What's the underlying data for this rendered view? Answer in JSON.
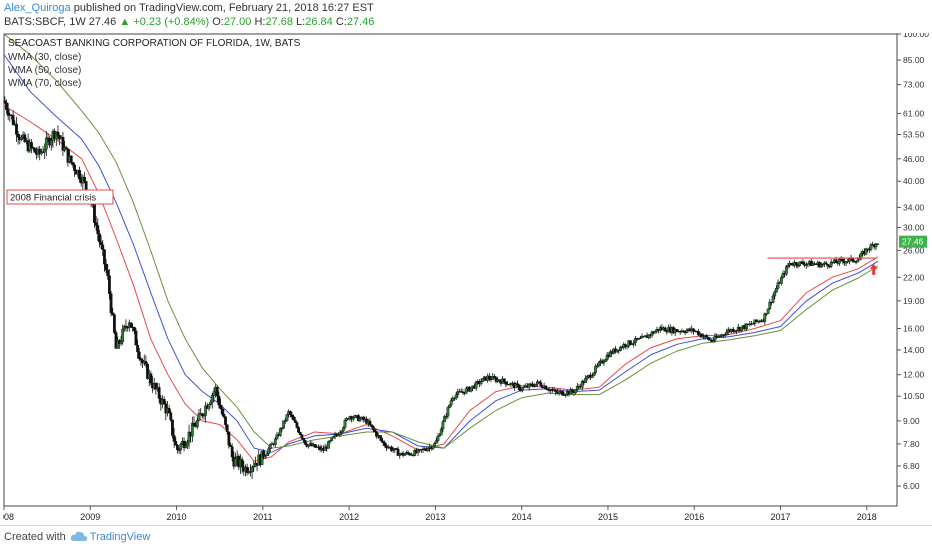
{
  "header": {
    "author": "Alex_Quiroga",
    "published_text": "published on TradingView.com, February 21, 2018 16:27 EST"
  },
  "quote": {
    "symbol": "BATS:SBCF, 1W",
    "last": "27.46",
    "change": "+0.23 (+0.84%)",
    "o_label": "O:",
    "o": "27.00",
    "h_label": "H:",
    "h": "27.68",
    "l_label": "L:",
    "l": "26.84",
    "c_label": "C:",
    "c": "27.46"
  },
  "footer": {
    "created_with": "Created with",
    "brand": "TradingView"
  },
  "colors": {
    "candle_up": "#2e7d32",
    "candle_down": "#111111",
    "wma30": "#e8484a",
    "wma50": "#3c52d6",
    "wma70": "#6b8f3c",
    "resistance": "#e8484a",
    "price_badge": "#3cb44b",
    "arrow": "#e53935"
  },
  "chart_data": {
    "type": "line",
    "title": "SEACOAST BANKING CORPORATION OF FLORIDA, 1W, BATS",
    "y_scale": "log",
    "ylim": [
      5.3,
      100
    ],
    "y_ticks": [
      "100.00",
      "85.00",
      "73.00",
      "61.00",
      "53.50",
      "46.00",
      "40.00",
      "34.00",
      "30.00",
      "26.00",
      "22.00",
      "19.00",
      "16.00",
      "14.00",
      "12.00",
      "10.50",
      "9.00",
      "7.80",
      "6.80",
      "6.00"
    ],
    "y_tick_values": [
      100,
      85,
      73,
      61,
      53.5,
      46,
      40,
      34,
      30,
      26,
      22,
      19,
      16,
      14,
      12,
      10.5,
      9,
      7.8,
      6.8,
      6
    ],
    "x_ticks": [
      "2008",
      "2009",
      "2010",
      "2011",
      "2012",
      "2013",
      "2014",
      "2015",
      "2016",
      "2017",
      "2018"
    ],
    "x_tick_values": [
      2008,
      2009,
      2010,
      2011,
      2012,
      2013,
      2014,
      2015,
      2016,
      2017,
      2018
    ],
    "xlim": [
      2008.0,
      2018.35
    ],
    "last_price_label": "27.46",
    "annotation": "2008 Financial crisis",
    "resistance_level": 24.8,
    "resistance_span": [
      2016.85,
      2018.1
    ],
    "arrow_at": [
      2018.08,
      22.9
    ],
    "series": [
      {
        "name": "SBCF",
        "x": [
          2008.0,
          2008.2,
          2008.4,
          2008.6,
          2008.75,
          2008.9,
          2009.0,
          2009.1,
          2009.2,
          2009.3,
          2009.45,
          2009.6,
          2009.75,
          2009.9,
          2010.0,
          2010.1,
          2010.25,
          2010.35,
          2010.45,
          2010.55,
          2010.65,
          2010.8,
          2011.0,
          2011.15,
          2011.3,
          2011.5,
          2011.7,
          2011.9,
          2012.0,
          2012.2,
          2012.4,
          2012.6,
          2012.8,
          2013.0,
          2013.2,
          2013.4,
          2013.6,
          2013.8,
          2014.0,
          2014.2,
          2014.4,
          2014.6,
          2014.8,
          2015.0,
          2015.2,
          2015.4,
          2015.6,
          2015.8,
          2016.0,
          2016.2,
          2016.4,
          2016.6,
          2016.8,
          2016.95,
          2017.1,
          2017.3,
          2017.5,
          2017.7,
          2017.9,
          2018.0,
          2018.13
        ],
        "y": [
          66,
          52,
          47,
          55,
          46,
          41,
          36,
          28,
          22,
          14,
          17,
          13,
          11,
          9.5,
          7.5,
          8.0,
          9.0,
          10.0,
          11.0,
          9.0,
          7.1,
          6.7,
          7.2,
          8.0,
          9.5,
          7.8,
          7.5,
          8.5,
          9.3,
          9.0,
          7.8,
          7.3,
          7.4,
          7.8,
          10.5,
          11.0,
          11.8,
          11.5,
          11.0,
          11.4,
          10.7,
          10.8,
          12.0,
          13.6,
          14.5,
          15.0,
          16.0,
          15.8,
          15.8,
          14.8,
          15.8,
          16.2,
          17.0,
          20.5,
          24.0,
          24.0,
          23.8,
          24.3,
          24.6,
          26.2,
          27.46
        ]
      },
      {
        "name": "WMA (30, close)",
        "x": [
          2008.0,
          2008.3,
          2008.6,
          2008.9,
          2009.1,
          2009.3,
          2009.5,
          2009.7,
          2009.9,
          2010.1,
          2010.3,
          2010.5,
          2010.7,
          2010.9,
          2011.1,
          2011.3,
          2011.6,
          2011.9,
          2012.2,
          2012.5,
          2012.8,
          2013.1,
          2013.4,
          2013.7,
          2014.0,
          2014.3,
          2014.6,
          2014.9,
          2015.2,
          2015.5,
          2015.8,
          2016.1,
          2016.4,
          2016.7,
          2017.0,
          2017.3,
          2017.6,
          2017.9,
          2018.13
        ],
        "y": [
          64,
          58,
          52,
          46,
          37,
          28,
          21,
          15,
          12,
          10,
          9.0,
          8.8,
          8.0,
          7.0,
          7.2,
          7.9,
          8.4,
          8.3,
          8.8,
          8.2,
          7.5,
          7.8,
          9.6,
          10.8,
          11.2,
          11.1,
          10.9,
          11.1,
          12.8,
          14.2,
          15.0,
          15.3,
          15.4,
          16.0,
          16.8,
          20.0,
          22.0,
          23.2,
          25.0
        ]
      },
      {
        "name": "WMA (50, close)",
        "x": [
          2008.0,
          2008.3,
          2008.6,
          2008.9,
          2009.1,
          2009.3,
          2009.5,
          2009.7,
          2009.9,
          2010.1,
          2010.3,
          2010.5,
          2010.7,
          2010.9,
          2011.1,
          2011.3,
          2011.6,
          2011.9,
          2012.2,
          2012.5,
          2012.8,
          2013.1,
          2013.4,
          2013.7,
          2014.0,
          2014.3,
          2014.6,
          2014.9,
          2015.2,
          2015.5,
          2015.8,
          2016.1,
          2016.4,
          2016.7,
          2017.0,
          2017.3,
          2017.6,
          2017.9,
          2018.13
        ],
        "y": [
          88,
          70,
          60,
          52,
          44,
          35,
          27,
          20,
          15,
          12,
          10.8,
          10.0,
          9.0,
          7.6,
          7.4,
          7.8,
          8.2,
          8.3,
          8.6,
          8.4,
          7.7,
          7.6,
          9.0,
          10.2,
          10.9,
          11.0,
          10.8,
          10.9,
          12.2,
          13.6,
          14.5,
          15.0,
          15.2,
          15.6,
          16.2,
          19.0,
          21.2,
          22.6,
          24.3
        ]
      },
      {
        "name": "WMA (70, close)",
        "x": [
          2008.0,
          2008.3,
          2008.6,
          2008.9,
          2009.1,
          2009.3,
          2009.5,
          2009.7,
          2009.9,
          2010.1,
          2010.3,
          2010.5,
          2010.7,
          2010.9,
          2011.1,
          2011.3,
          2011.6,
          2011.9,
          2012.2,
          2012.5,
          2012.8,
          2013.1,
          2013.4,
          2013.7,
          2014.0,
          2014.3,
          2014.6,
          2014.9,
          2015.2,
          2015.5,
          2015.8,
          2016.1,
          2016.4,
          2016.7,
          2017.0,
          2017.3,
          2017.6,
          2017.9,
          2018.13
        ],
        "y": [
          100,
          88,
          75,
          62,
          54,
          45,
          35,
          26,
          19,
          15,
          12.5,
          11.0,
          9.8,
          8.4,
          7.6,
          7.7,
          8.0,
          8.2,
          8.4,
          8.4,
          7.9,
          7.6,
          8.6,
          9.6,
          10.4,
          10.7,
          10.6,
          10.6,
          11.6,
          12.9,
          13.9,
          14.6,
          14.9,
          15.3,
          15.8,
          18.0,
          20.3,
          21.9,
          23.6
        ]
      }
    ]
  }
}
